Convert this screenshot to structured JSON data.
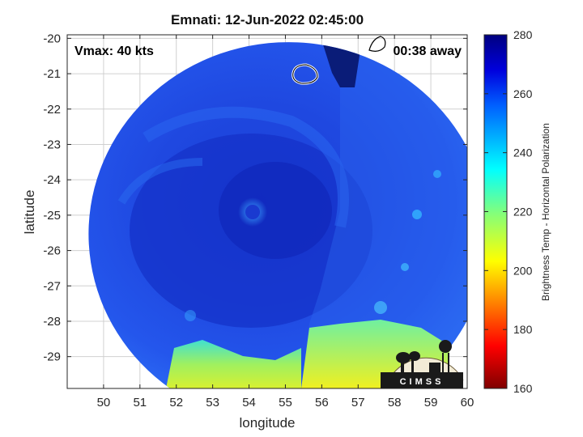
{
  "chart_data": {
    "type": "heatmap",
    "title": "Emnati: 12-Jun-2022 02:45:00",
    "xlabel": "longitude",
    "ylabel": "latitude",
    "xlim": [
      49,
      60
    ],
    "ylim": [
      -29.9,
      -19.9
    ],
    "x_ticks": [
      "50",
      "51",
      "52",
      "53",
      "54",
      "55",
      "56",
      "57",
      "58",
      "59",
      "60"
    ],
    "y_ticks": [
      "-20",
      "-21",
      "-22",
      "-23",
      "-24",
      "-25",
      "-26",
      "-27",
      "-28",
      "-29"
    ],
    "grid": true,
    "annotations": {
      "vmax": "Vmax: 40 kts",
      "time_offset": "00:38 away"
    },
    "colorbar": {
      "label": "Brightness Temp - Horizontal Polarization",
      "range": [
        160,
        280
      ],
      "ticks": [
        "280",
        "260",
        "240",
        "220",
        "200",
        "180",
        "160"
      ],
      "colormap": "jet"
    },
    "storm_center": {
      "lon": 54.5,
      "lat": -25.0
    },
    "swath_center": {
      "lon": 54.7,
      "lat": -24.9
    },
    "warm_region_values": {
      "south_edge": 215,
      "southeast_band": 205
    },
    "background_value": 252
  },
  "logo": {
    "text": "CIMSS"
  }
}
